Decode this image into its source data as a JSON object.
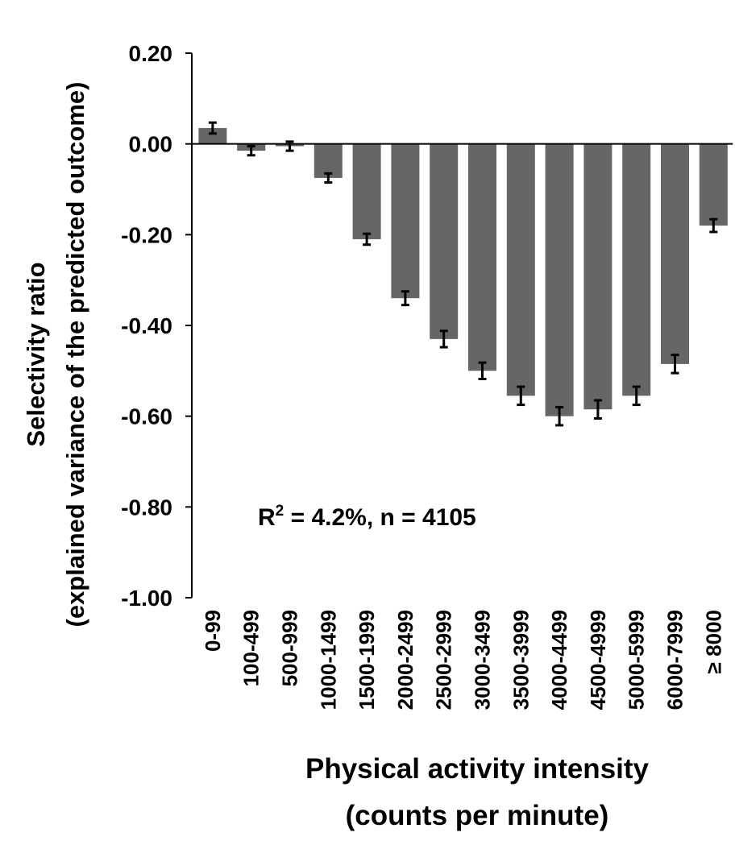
{
  "chart_data": {
    "type": "bar",
    "title": "",
    "ylabel_line1": "Selectivity ratio",
    "ylabel_line2": "(explained variance of the predicted outcome)",
    "xlabel_line1": "Physical activity intensity",
    "xlabel_line2": "(counts per minute)",
    "annotation": {
      "prefix": "R",
      "superscript": "2",
      "suffix": " = 4.2%, n = 4105"
    },
    "ylim": [
      -1.0,
      0.2
    ],
    "yticks": [
      0.2,
      0.0,
      -0.2,
      -0.4,
      -0.6,
      -0.8,
      -1.0
    ],
    "ytick_labels": [
      "0.20",
      "0.00",
      "-0.20",
      "-0.40",
      "-0.60",
      "-0.80",
      "-1.00"
    ],
    "categories": [
      "0-99",
      "100-499",
      "500-999",
      "1000-1499",
      "1500-1999",
      "2000-2499",
      "2500-2999",
      "3000-3499",
      "3500-3999",
      "4000-4499",
      "4500-4999",
      "5000-5999",
      "6000-7999",
      "≥ 8000"
    ],
    "values": [
      0.035,
      -0.015,
      -0.005,
      -0.075,
      -0.21,
      -0.34,
      -0.43,
      -0.5,
      -0.555,
      -0.6,
      -0.585,
      -0.555,
      -0.485,
      -0.18
    ],
    "errors": [
      0.012,
      0.01,
      0.01,
      0.01,
      0.012,
      0.015,
      0.018,
      0.018,
      0.02,
      0.02,
      0.02,
      0.02,
      0.02,
      0.014
    ],
    "grid": false,
    "legend": "none",
    "colors": {
      "bar": "#666666",
      "axis": "#000000",
      "text": "#000000"
    }
  }
}
